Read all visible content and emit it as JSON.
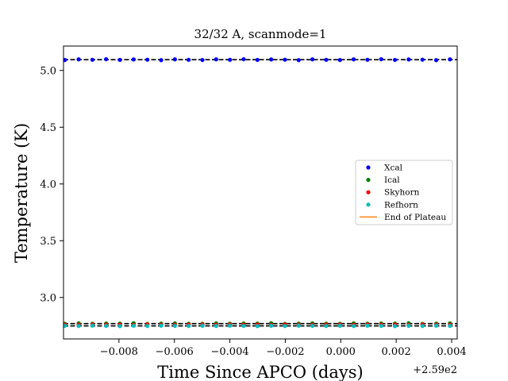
{
  "chart_data": {
    "type": "scatter",
    "title": "32/32 A, scanmode=1",
    "xlabel": "Time Since APCO (days)",
    "ylabel": "Temperature (K)",
    "x_offset_label": "+2.59e2",
    "xlim": [
      -0.01,
      0.0042
    ],
    "ylim": [
      2.635,
      5.215
    ],
    "x_tick_labels": [
      "−0.008",
      "−0.006",
      "−0.004",
      "−0.002",
      "0.000",
      "0.002",
      "0.004"
    ],
    "y_tick_labels": [
      "3.0",
      "3.5",
      "4.0",
      "4.5",
      "5.0"
    ],
    "x_ticks": [
      -0.008,
      -0.006,
      -0.004,
      -0.002,
      0.0,
      0.002,
      0.004
    ],
    "y_ticks": [
      3.0,
      3.5,
      4.0,
      4.5,
      5.0
    ],
    "legend_position": "center-right",
    "reference_lines": [
      {
        "y": 5.095,
        "style": "dashed",
        "color": "#000000"
      },
      {
        "y": 2.77,
        "style": "dashed",
        "color": "#000000"
      },
      {
        "y": 2.75,
        "style": "dashed",
        "color": "#000000"
      }
    ],
    "series": [
      {
        "name": "Xcal",
        "color": "#0000ff",
        "marker": "dot",
        "x_start": -0.00995,
        "x_step": 0.000496,
        "count": 29,
        "y_pattern": [
          5.092,
          5.098,
          5.094,
          5.099,
          5.093,
          5.097,
          5.095,
          5.091,
          5.098,
          5.094
        ]
      },
      {
        "name": "Ical",
        "color": "#008000",
        "marker": "dot",
        "x_start": -0.00995,
        "x_step": 0.000496,
        "count": 29,
        "y_pattern": [
          2.768,
          2.772,
          2.769,
          2.771,
          2.77,
          2.773,
          2.767,
          2.77,
          2.772,
          2.769
        ]
      },
      {
        "name": "Skyhorn",
        "color": "#ff0000",
        "marker": "dot",
        "x_start": -0.00995,
        "x_step": 0.000496,
        "count": 29,
        "y_pattern": [
          2.762,
          2.76,
          2.763,
          2.761,
          2.762,
          2.759,
          2.763,
          2.761,
          2.76,
          2.762
        ]
      },
      {
        "name": "Refhorn",
        "color": "#00bfbf",
        "marker": "dot",
        "x_start": -0.00995,
        "x_step": 0.000496,
        "count": 29,
        "y_pattern": [
          2.751,
          2.749,
          2.752,
          2.75,
          2.748,
          2.751,
          2.749,
          2.752,
          2.75,
          2.749
        ]
      },
      {
        "name": "End of Plateau",
        "color": "#ff7f0e",
        "marker": "line"
      }
    ]
  }
}
